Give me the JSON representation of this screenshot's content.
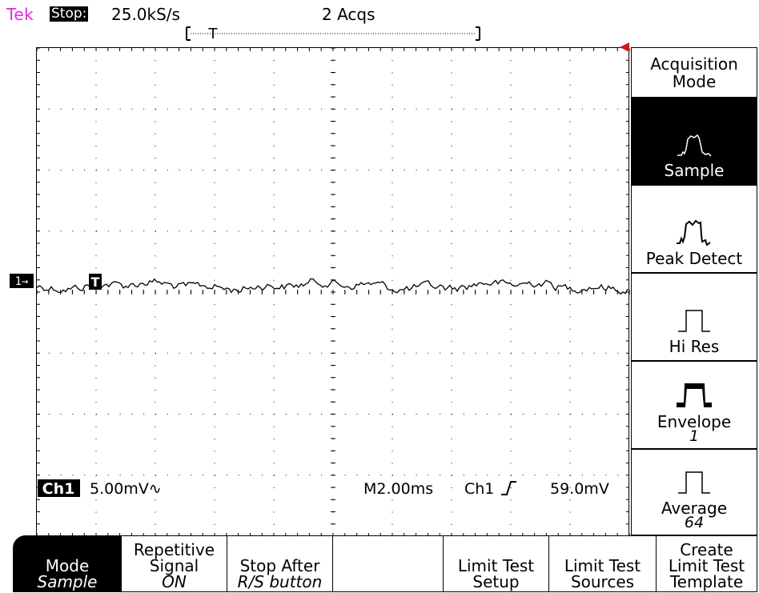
{
  "status": {
    "brand": "Tek",
    "run_state": "Stop:",
    "sample_rate": "25.0kS/s",
    "acquisitions": "2 Acqs"
  },
  "waveform": {
    "channel_marker": "1→",
    "trigger_marker": "T",
    "record_bracket_trigger": "T",
    "trace_color": "#000000"
  },
  "readouts": {
    "channel_label": "Ch1",
    "channel_scale": "5.00mV∿",
    "timebase": "M2.00ms",
    "trigger_source": "Ch1",
    "trigger_slope_icon": "rising-edge-icon",
    "trigger_level": "59.0mV"
  },
  "side_menu": {
    "title": "Acquisition Mode",
    "items": [
      {
        "label": "Sample",
        "sub": "",
        "icon": "sample-mode-icon",
        "selected": true
      },
      {
        "label": "Peak Detect",
        "sub": "",
        "icon": "peak-detect-icon",
        "selected": false
      },
      {
        "label": "Hi Res",
        "sub": "",
        "icon": "hi-res-icon",
        "selected": false
      },
      {
        "label": "Envelope",
        "sub": "1",
        "icon": "envelope-icon",
        "selected": false
      },
      {
        "label": "Average",
        "sub": "64",
        "icon": "average-icon",
        "selected": false
      }
    ]
  },
  "bottom_menu": {
    "mode": {
      "line1": "Mode",
      "line2": "Sample"
    },
    "repetitive_signal": {
      "line1": "Repetitive",
      "line2": "Signal",
      "line3": "ON"
    },
    "stop_after": {
      "line1": "Stop After",
      "line2": "R/S button"
    },
    "blank": "",
    "limit_test_setup": {
      "line1": "Limit Test",
      "line2": "Setup"
    },
    "limit_test_sources": {
      "line1": "Limit Test",
      "line2": "Sources"
    },
    "create_template": {
      "line1": "Create",
      "line2": "Limit Test",
      "line3": "Template"
    }
  },
  "colors": {
    "brand": "#e02be0",
    "background": "#ffffff",
    "foreground": "#000000"
  }
}
